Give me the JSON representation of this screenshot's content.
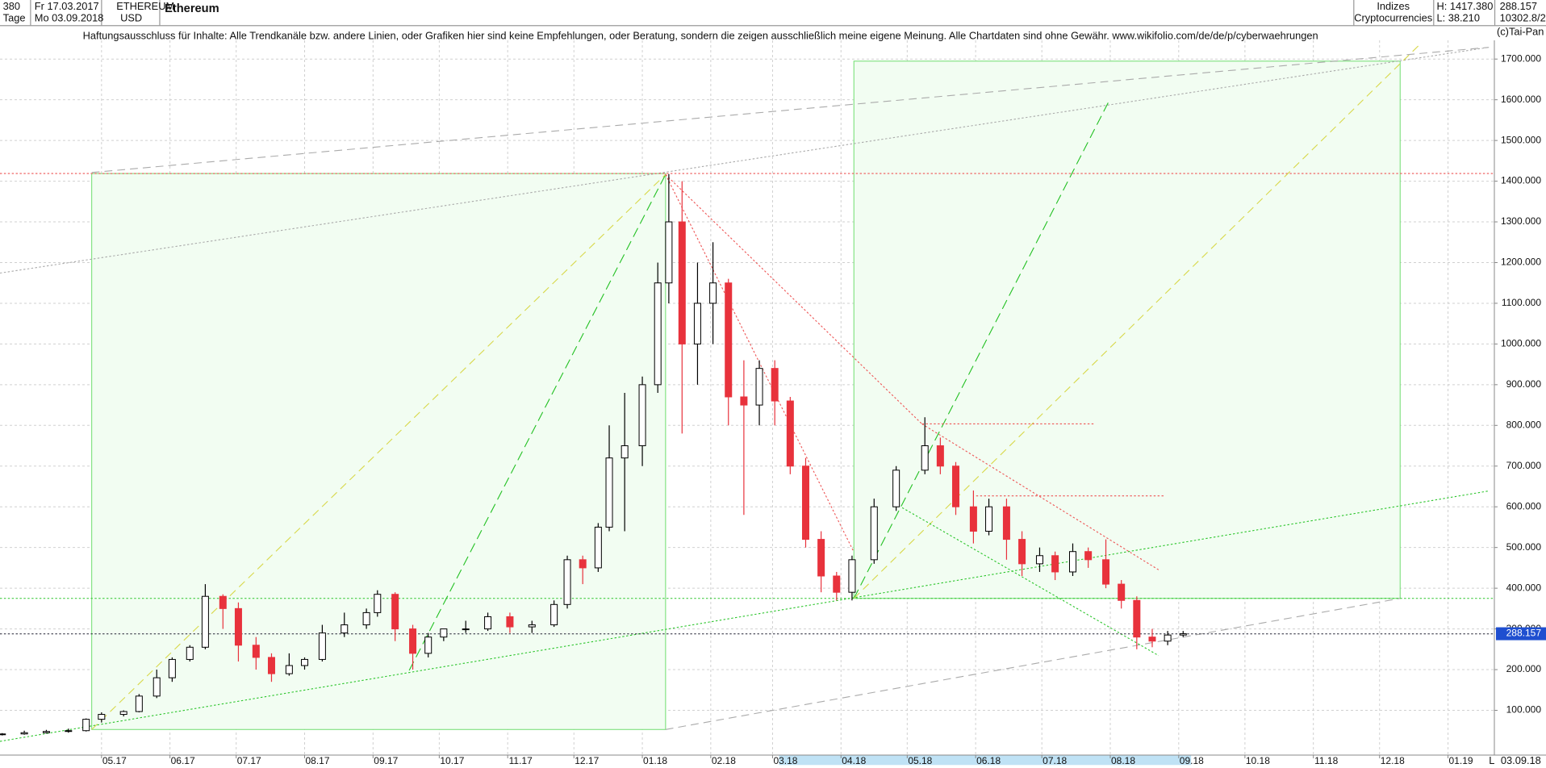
{
  "header": {
    "period": "380",
    "start_date": "Fr 17.03.2017",
    "unit": "Tage",
    "end_date": "Mo 03.09.2018",
    "symbol": "ETHEREUM",
    "currency": "USD",
    "name": "Ethereum",
    "group": "Indizes",
    "subgroup": "Cryptocurrencies",
    "high": "H: 1417.380",
    "low": "L: 38.210",
    "last": "288.157",
    "volume": "10302.8/2",
    "disclaimer": "Haftungsausschluss für Inhalte: Alle Trendkanäle bzw. andere Linien, oder Grafiken hier sind keine Empfehlungen, oder Beratung, sondern die zeigen ausschließlich meine eigene Meinung. Alle Chartdaten sind ohne Gewähr.  www.wikifolio.com/de/de/p/cyberwaehrungen",
    "copyright": "(c)Tai-Pan",
    "scale_mode": "L",
    "axis_date": "03.09.18"
  },
  "chart_data": {
    "type": "candlestick",
    "up_color": "#000000",
    "down_color": "#e8323c",
    "last_price": 288.157,
    "last_price_color": "#1f4fd0",
    "grid": true,
    "x": [
      0,
      10,
      20,
      30,
      38,
      45,
      55,
      62,
      70,
      77,
      85,
      92,
      100,
      107,
      115,
      122,
      130,
      137,
      145,
      155,
      165,
      170,
      178,
      186,
      193,
      200,
      210,
      220,
      230,
      240,
      250,
      256,
      263,
      270,
      275,
      282,
      290,
      297,
      302,
      308,
      315,
      322,
      329,
      336,
      343,
      350,
      357,
      364,
      371,
      378,
      385,
      395,
      405,
      418,
      425,
      432,
      440,
      447,
      455,
      462,
      470,
      477,
      485,
      492,
      500,
      507,
      514,
      521,
      528,
      535
    ],
    "open": [
      40,
      42,
      45,
      48,
      50,
      78,
      90,
      97,
      135,
      180,
      225,
      255,
      380,
      350,
      260,
      230,
      190,
      210,
      225,
      290,
      310,
      340,
      385,
      300,
      240,
      280,
      300,
      300,
      330,
      305,
      310,
      360,
      470,
      450,
      550,
      720,
      750,
      900,
      1150,
      1300,
      1000,
      1100,
      1150,
      870,
      850,
      940,
      860,
      700,
      520,
      430,
      390,
      470,
      600,
      690,
      750,
      700,
      600,
      540,
      600,
      520,
      460,
      480,
      440,
      490,
      470,
      410,
      370,
      280,
      270,
      285
    ],
    "high": [
      44,
      50,
      52,
      55,
      80,
      95,
      100,
      140,
      200,
      230,
      260,
      410,
      385,
      365,
      280,
      240,
      240,
      230,
      310,
      340,
      350,
      395,
      390,
      310,
      290,
      300,
      320,
      340,
      340,
      320,
      370,
      480,
      480,
      560,
      800,
      880,
      920,
      1200,
      1417.38,
      1400,
      1200,
      1250,
      1160,
      960,
      960,
      960,
      870,
      720,
      540,
      440,
      480,
      620,
      700,
      820,
      770,
      710,
      640,
      620,
      620,
      540,
      500,
      490,
      510,
      500,
      520,
      420,
      380,
      300,
      295,
      295
    ],
    "low": [
      38.21,
      40,
      43,
      45,
      48,
      70,
      85,
      95,
      130,
      170,
      220,
      250,
      300,
      220,
      200,
      170,
      185,
      200,
      220,
      280,
      300,
      330,
      270,
      200,
      230,
      270,
      290,
      295,
      290,
      290,
      305,
      350,
      410,
      440,
      540,
      540,
      700,
      880,
      1100,
      780,
      900,
      1000,
      800,
      580,
      800,
      800,
      680,
      500,
      390,
      370,
      370,
      460,
      590,
      680,
      680,
      580,
      510,
      530,
      470,
      430,
      440,
      420,
      430,
      450,
      400,
      350,
      250,
      255,
      260,
      280
    ],
    "close": [
      42,
      45,
      48,
      50,
      78,
      90,
      97,
      135,
      180,
      225,
      255,
      380,
      350,
      260,
      230,
      190,
      210,
      225,
      290,
      310,
      340,
      385,
      300,
      240,
      280,
      300,
      300,
      330,
      305,
      310,
      360,
      470,
      450,
      550,
      720,
      750,
      900,
      1150,
      1300,
      1000,
      1100,
      1150,
      870,
      850,
      940,
      860,
      700,
      520,
      430,
      390,
      470,
      600,
      690,
      750,
      700,
      600,
      540,
      600,
      520,
      460,
      480,
      440,
      490,
      470,
      410,
      370,
      280,
      270,
      285,
      288.157
    ],
    "xlim": [
      -1,
      676
    ],
    "ylim": [
      -10,
      1746
    ],
    "xticks": [
      {
        "value": 45,
        "label": "05.17"
      },
      {
        "value": 76,
        "label": "06.17"
      },
      {
        "value": 106,
        "label": "07.17"
      },
      {
        "value": 137,
        "label": "08.17"
      },
      {
        "value": 168,
        "label": "09.17"
      },
      {
        "value": 198,
        "label": "10.17"
      },
      {
        "value": 229,
        "label": "11.17"
      },
      {
        "value": 259,
        "label": "12.17"
      },
      {
        "value": 290,
        "label": "01.18"
      },
      {
        "value": 321,
        "label": "02.18"
      },
      {
        "value": 349,
        "label": "03.18"
      },
      {
        "value": 380,
        "label": "04.18"
      },
      {
        "value": 410,
        "label": "05.18"
      },
      {
        "value": 441,
        "label": "06.18"
      },
      {
        "value": 471,
        "label": "07.18"
      },
      {
        "value": 502,
        "label": "08.18"
      },
      {
        "value": 533,
        "label": "09.18"
      },
      {
        "value": 563,
        "label": "10.18"
      },
      {
        "value": 594,
        "label": "11.18"
      },
      {
        "value": 624,
        "label": "12.18"
      },
      {
        "value": 655,
        "label": "01.19"
      }
    ],
    "yticks": [
      {
        "value": 100,
        "label": "100.000"
      },
      {
        "value": 200,
        "label": "200.000"
      },
      {
        "value": 300,
        "label": "300.000"
      },
      {
        "value": 400,
        "label": "400.000"
      },
      {
        "value": 500,
        "label": "500.000"
      },
      {
        "value": 600,
        "label": "600.000"
      },
      {
        "value": 700,
        "label": "700.000"
      },
      {
        "value": 800,
        "label": "800.000"
      },
      {
        "value": 900,
        "label": "900.000"
      },
      {
        "value": 1000,
        "label": "1000.000"
      },
      {
        "value": 1100,
        "label": "1100.000"
      },
      {
        "value": 1200,
        "label": "1200.000"
      },
      {
        "value": 1300,
        "label": "1300.000"
      },
      {
        "value": 1400,
        "label": "1400.000"
      },
      {
        "value": 1500,
        "label": "1500.000"
      },
      {
        "value": 1600,
        "label": "1600.000"
      },
      {
        "value": 1700,
        "label": "1700.000"
      }
    ]
  }
}
